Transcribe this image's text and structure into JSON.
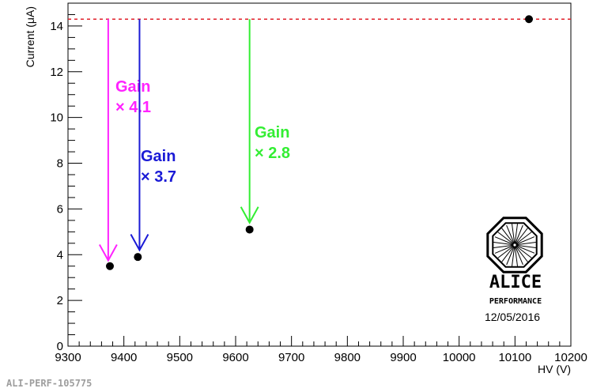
{
  "chart_data": {
    "type": "scatter",
    "xlabel": "HV (V)",
    "ylabel": "Current (μA)",
    "xlim": [
      9300,
      10200
    ],
    "ylim": [
      0,
      15
    ],
    "x_ticks": [
      9300,
      9400,
      9500,
      9600,
      9700,
      9800,
      9900,
      10000,
      10100,
      10200
    ],
    "y_ticks": [
      0,
      2,
      4,
      6,
      8,
      10,
      12,
      14
    ],
    "points": [
      {
        "x": 9375,
        "y": 3.5
      },
      {
        "x": 9425,
        "y": 3.9
      },
      {
        "x": 9625,
        "y": 5.1
      },
      {
        "x": 10125,
        "y": 14.3
      }
    ],
    "reference_line": {
      "y": 14.3,
      "style": "dashed",
      "color": "#e0202a"
    },
    "annotations": [
      {
        "title": "Gain",
        "factor": "× 4.1",
        "color": "#ff22ff",
        "arrow_x": 9372,
        "arrow_from": 14.3,
        "arrow_to": 3.75
      },
      {
        "title": "Gain",
        "factor": "× 3.7",
        "color": "#1a1ad6",
        "arrow_x": 9428,
        "arrow_from": 14.3,
        "arrow_to": 4.2
      },
      {
        "title": "Gain",
        "factor": "× 2.8",
        "color": "#33ee33",
        "arrow_x": 9625,
        "arrow_from": 14.3,
        "arrow_to": 5.4
      }
    ],
    "logo": {
      "name": "ALICE",
      "subtitle": "PERFORMANCE",
      "date": "12/05/2016"
    },
    "figure_id": "ALI-PERF-105775",
    "grid": false,
    "marker_color": "#000000"
  }
}
